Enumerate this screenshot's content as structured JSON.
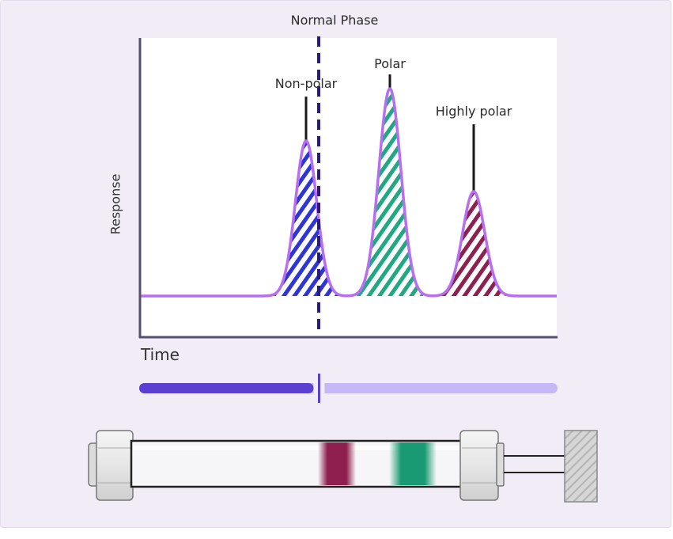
{
  "diagram": {
    "title": "Normal Phase",
    "y_axis_label": "Response",
    "x_axis_label": "Time",
    "peaks": [
      {
        "label": "Non-polar",
        "color": "#2d34d8"
      },
      {
        "label": "Polar",
        "color": "#1fa882"
      },
      {
        "label": "Highly polar",
        "color": "#8e1f4e"
      }
    ],
    "curve_color": "#b86ef0",
    "divider_color": "#2a1a80",
    "progress": {
      "fraction": 0.43,
      "filled_color": "#5a3fd0",
      "track_color": "#c6b8f6"
    },
    "column": {
      "bands": [
        {
          "name": "highly-polar-band",
          "color": "#8e1f4e"
        },
        {
          "name": "polar-band",
          "color": "#1a9a72"
        }
      ]
    }
  }
}
